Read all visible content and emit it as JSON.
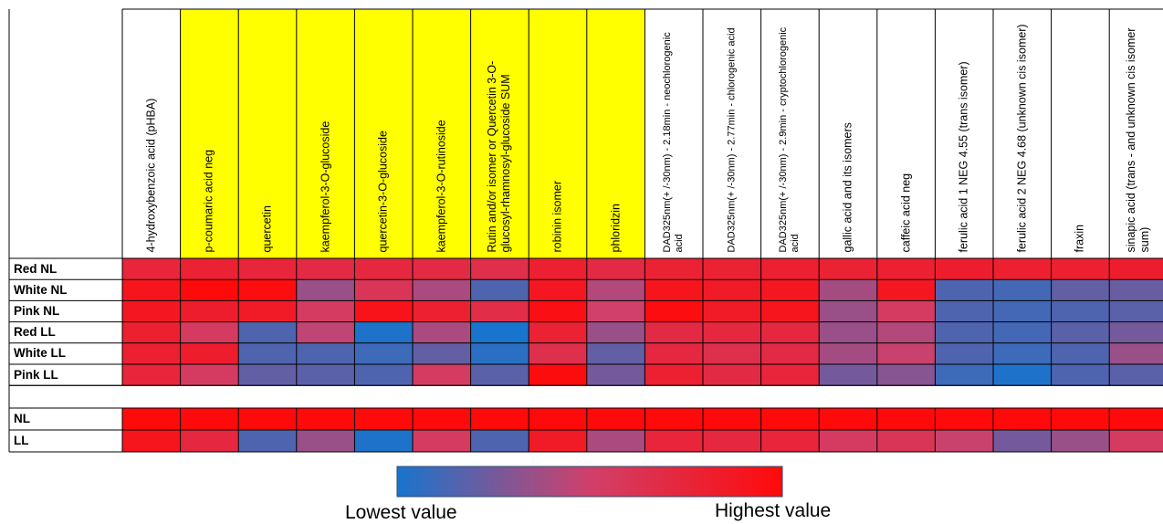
{
  "chart_data": {
    "type": "heatmap",
    "columns": [
      "4-hydroxybenzoic acid (pHBA)",
      "p-coumaric acid neg",
      "quercetin",
      "kaempferol-3-O-glucoside",
      "quercetin-3-O-glucoside",
      "kaempferol-3-O-rutinoside",
      "Rutin and/or isomer or Quercetin 3-O-glucosyl-rhamnosyl-glucoside SUM",
      "robinin isomer",
      "phloridzin",
      "DAD325nm(+ /-30nm) - 2.18min - neochlorogenic acid",
      "DAD325nm(+ /-30nm) - 2.77min - chlorogenic acid",
      "DAD325nm(+ /-30nm) - 2.9min - cryptochlorogenic acid",
      "gallic acid and its isomers",
      "caffeic acid neg",
      "ferulic acid 1 NEG 4.55 (trans isomer)",
      "ferulic acid 2 NEG 4.68 (unknown cis isomer)",
      "fraxin",
      "sinapic acid (trans - and unknown cis isomer sum)"
    ],
    "highlighted_columns": [
      1,
      2,
      3,
      4,
      5,
      6,
      7,
      8
    ],
    "highlight_color": "#ffff00",
    "rows_group1": [
      "Red NL",
      "White NL",
      "Pink NL",
      "Red LL",
      "White LL",
      "Pink LL"
    ],
    "rows_group2": [
      "NL",
      "LL"
    ],
    "values_group1": [
      [
        0.75,
        0.78,
        0.75,
        0.7,
        0.72,
        0.7,
        0.66,
        0.8,
        0.7,
        0.78,
        0.78,
        0.8,
        0.78,
        0.8,
        0.82,
        0.8,
        0.8,
        0.82
      ],
      [
        0.9,
        1.0,
        0.97,
        0.35,
        0.6,
        0.4,
        0.15,
        0.88,
        0.42,
        0.9,
        0.85,
        0.88,
        0.38,
        0.88,
        0.15,
        0.12,
        0.2,
        0.22
      ],
      [
        0.88,
        0.82,
        0.85,
        0.55,
        0.92,
        0.8,
        0.68,
        0.95,
        0.5,
        0.97,
        0.85,
        0.9,
        0.35,
        0.55,
        0.15,
        0.12,
        0.15,
        0.18
      ],
      [
        0.8,
        0.55,
        0.15,
        0.45,
        0.02,
        0.4,
        0.0,
        0.78,
        0.35,
        0.7,
        0.72,
        0.72,
        0.35,
        0.42,
        0.15,
        0.12,
        0.18,
        0.25
      ],
      [
        0.8,
        0.82,
        0.15,
        0.15,
        0.1,
        0.2,
        0.05,
        0.65,
        0.2,
        0.72,
        0.65,
        0.7,
        0.38,
        0.48,
        0.15,
        0.1,
        0.15,
        0.35
      ],
      [
        0.75,
        0.55,
        0.2,
        0.18,
        0.15,
        0.55,
        0.18,
        0.98,
        0.25,
        0.8,
        0.7,
        0.75,
        0.25,
        0.3,
        0.1,
        0.02,
        0.15,
        0.18
      ]
    ],
    "values_group2": [
      [
        1.0,
        1.0,
        1.0,
        1.0,
        1.0,
        1.0,
        1.0,
        1.0,
        1.0,
        1.0,
        1.0,
        1.0,
        1.0,
        1.0,
        1.0,
        1.0,
        1.0,
        1.0
      ],
      [
        0.9,
        0.72,
        0.15,
        0.35,
        0.02,
        0.55,
        0.15,
        0.85,
        0.4,
        0.75,
        0.72,
        0.75,
        0.55,
        0.6,
        0.48,
        0.25,
        0.35,
        0.55
      ]
    ],
    "scale_low_color": "#1874cd",
    "scale_mid_color": "#d0406a",
    "scale_high_color": "#ff0a0a",
    "legend": {
      "low_label": "Lowest value",
      "high_label": "Highest value",
      "placement": "bottom-center"
    }
  }
}
